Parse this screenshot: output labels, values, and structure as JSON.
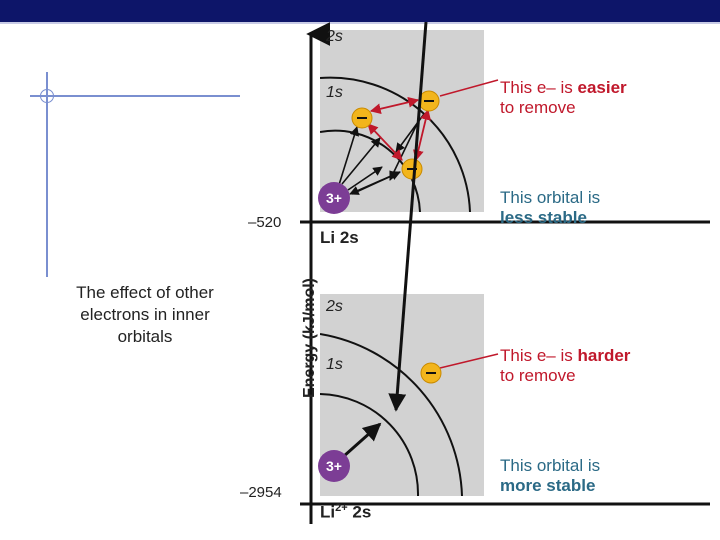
{
  "slide": {
    "caption_lines": [
      "The effect of other",
      "electrons in inner",
      "orbitals"
    ]
  },
  "figure": {
    "y_axis_label": "Energy (kJ/mol)",
    "top": {
      "energy_tick": "–520",
      "state_label": "Li 2s",
      "orbital_outer": "2s",
      "orbital_inner": "1s",
      "nucleus": "3+",
      "electron": "–",
      "remove_line1_a": "This e– is ",
      "remove_line1_b": "easier",
      "remove_line2": "to remove",
      "stability_line1": "This orbital is",
      "stability_line2": "less stable"
    },
    "bottom": {
      "energy_tick": "–2954",
      "state_label_main": "Li",
      "state_label_sup": "2+",
      "state_label_orbital": "2s",
      "orbital_outer": "2s",
      "orbital_inner": "1s",
      "nucleus": "3+",
      "electron": "–",
      "remove_line1_a": "This e– is ",
      "remove_line1_b": "harder",
      "remove_line2": "to remove",
      "stability_line1": "This orbital is",
      "stability_line2": "more stable"
    },
    "colors": {
      "panel": "#d2d2d2",
      "electron": "#f2b51c",
      "nucleus": "#7c3d95",
      "red": "#c0182b",
      "teal": "#2b6a86",
      "banner": "#0d1569"
    }
  }
}
